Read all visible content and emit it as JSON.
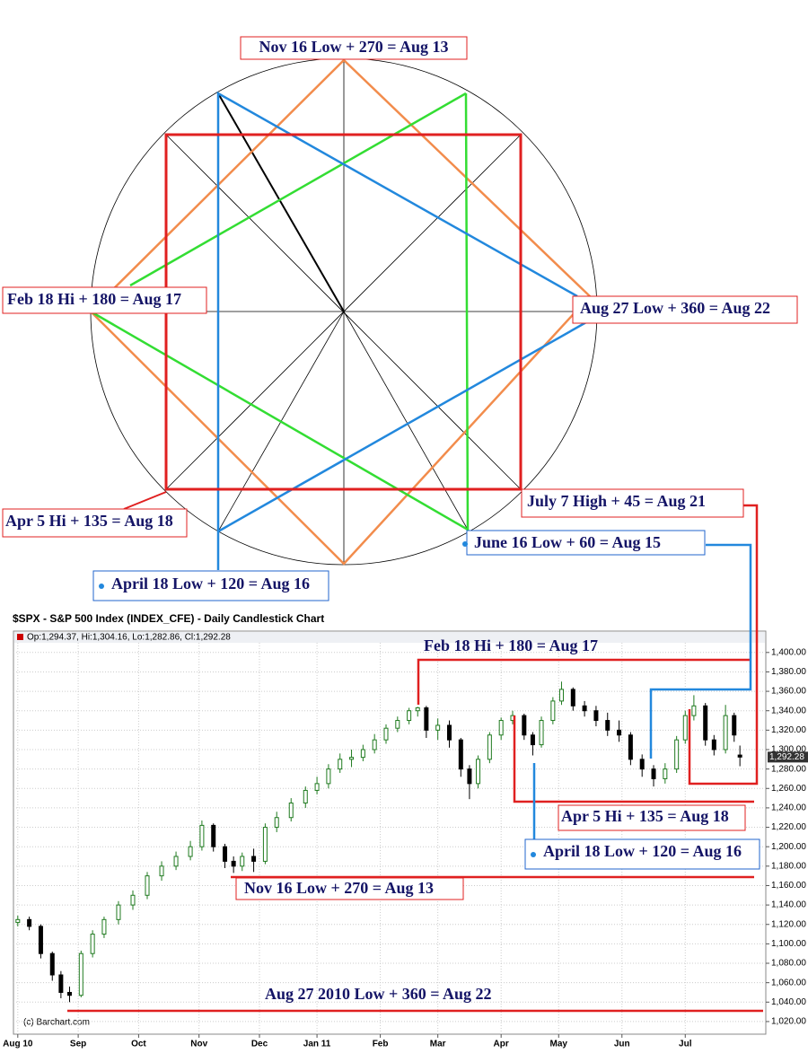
{
  "diagram": {
    "labels": [
      "Nov 16 Low + 270 = Aug 13",
      "Feb 18 Hi + 180 = Aug 17",
      "Aug 27 Low + 360 =  Aug 22",
      "Apr 5 Hi + 135 = Aug 18",
      "July 7 High  + 45 = Aug 21",
      "June 16 Low + 60 = Aug 15",
      "April 18 Low + 120 = Aug 16"
    ]
  },
  "chart_data": {
    "type": "candlestick",
    "title": "$SPX - S&P 500 Index (INDEX_CFE) - Daily Candlestick Chart",
    "info": "Op:1,294.37, Hi:1,304.16, Lo:1,282.86, Cl:1,292.28",
    "credit": "(c) Barchart.com",
    "annotations": [
      "Feb 18 Hi + 180 = Aug 17",
      "Apr 5 Hi + 135 = Aug 18",
      "April 18 Low + 120 = Aug 16",
      "Nov 16 Low + 270 = Aug 13",
      "Aug 27 2010 Low + 360 = Aug 22"
    ],
    "last_price": {
      "value": 1292.28,
      "label": "1,292.28"
    },
    "up_color": "#1f7a1f",
    "down_color": "#000000",
    "x": [
      0,
      4,
      8,
      12,
      15,
      18,
      22,
      26,
      30,
      35,
      40,
      45,
      50,
      55,
      60,
      64,
      68,
      72,
      75,
      78,
      82,
      86,
      90,
      95,
      100,
      104,
      108,
      112,
      116,
      120,
      124,
      128,
      132,
      136,
      139,
      142,
      146,
      150,
      154,
      157,
      160,
      164,
      168,
      172,
      176,
      179,
      182,
      186,
      189,
      193,
      197,
      201,
      205,
      209,
      213,
      217,
      221,
      225,
      229,
      232,
      235,
      239,
      242,
      246,
      249,
      251
    ],
    "open": [
      1122,
      1125,
      1118,
      1090,
      1068,
      1050,
      1047,
      1090,
      1110,
      1125,
      1140,
      1150,
      1170,
      1180,
      1190,
      1200,
      1222,
      1200,
      1185,
      1180,
      1190,
      1185,
      1220,
      1230,
      1245,
      1258,
      1265,
      1280,
      1290,
      1292,
      1300,
      1310,
      1322,
      1330,
      1340,
      1343,
      1320,
      1325,
      1310,
      1280,
      1265,
      1290,
      1315,
      1330,
      1335,
      1315,
      1305,
      1330,
      1350,
      1362,
      1345,
      1340,
      1330,
      1320,
      1315,
      1290,
      1280,
      1270,
      1280,
      1310,
      1335,
      1345,
      1310,
      1300,
      1335,
      1294.37
    ],
    "high": [
      1129,
      1128,
      1120,
      1092,
      1072,
      1056,
      1093,
      1114,
      1128,
      1144,
      1155,
      1174,
      1185,
      1195,
      1206,
      1227,
      1224,
      1203,
      1190,
      1194,
      1198,
      1224,
      1236,
      1250,
      1262,
      1272,
      1285,
      1296,
      1300,
      1305,
      1316,
      1326,
      1334,
      1343,
      1344,
      1345,
      1332,
      1330,
      1312,
      1284,
      1294,
      1318,
      1333,
      1340,
      1337,
      1318,
      1334,
      1354,
      1370,
      1364,
      1350,
      1345,
      1338,
      1330,
      1318,
      1295,
      1284,
      1286,
      1314,
      1340,
      1356,
      1348,
      1315,
      1346,
      1338,
      1304.16
    ],
    "low": [
      1118,
      1114,
      1085,
      1062,
      1044,
      1040,
      1045,
      1086,
      1106,
      1120,
      1135,
      1146,
      1165,
      1176,
      1186,
      1196,
      1195,
      1178,
      1173,
      1175,
      1174,
      1182,
      1215,
      1226,
      1240,
      1254,
      1260,
      1276,
      1282,
      1288,
      1296,
      1306,
      1318,
      1326,
      1334,
      1312,
      1310,
      1302,
      1272,
      1249,
      1260,
      1286,
      1310,
      1326,
      1310,
      1294,
      1302,
      1326,
      1346,
      1340,
      1334,
      1324,
      1314,
      1308,
      1284,
      1272,
      1262,
      1265,
      1276,
      1306,
      1330,
      1304,
      1294,
      1296,
      1308,
      1282.86
    ],
    "close": [
      1125,
      1118,
      1090,
      1068,
      1050,
      1047,
      1090,
      1110,
      1125,
      1140,
      1150,
      1170,
      1180,
      1190,
      1200,
      1222,
      1200,
      1185,
      1180,
      1190,
      1185,
      1220,
      1230,
      1245,
      1258,
      1265,
      1280,
      1290,
      1292,
      1300,
      1310,
      1322,
      1330,
      1340,
      1343,
      1320,
      1325,
      1310,
      1280,
      1265,
      1290,
      1315,
      1330,
      1335,
      1315,
      1305,
      1330,
      1350,
      1362,
      1345,
      1340,
      1330,
      1320,
      1315,
      1290,
      1280,
      1270,
      1280,
      1310,
      1335,
      1345,
      1310,
      1300,
      1335,
      1315,
      1292.28
    ],
    "xlim": [
      -1.5,
      260
    ],
    "xticks": [
      {
        "value": 0,
        "label": "Aug 10"
      },
      {
        "value": 21,
        "label": "Sep"
      },
      {
        "value": 42,
        "label": "Oct"
      },
      {
        "value": 63,
        "label": "Nov"
      },
      {
        "value": 84,
        "label": "Dec"
      },
      {
        "value": 104,
        "label": "Jan 11"
      },
      {
        "value": 126,
        "label": "Feb"
      },
      {
        "value": 146,
        "label": "Mar"
      },
      {
        "value": 168,
        "label": "Apr"
      },
      {
        "value": 188,
        "label": "May"
      },
      {
        "value": 210,
        "label": "Jun"
      },
      {
        "value": 232,
        "label": "Jul"
      }
    ],
    "ylim": [
      1007,
      1422
    ],
    "yticks": [
      {
        "value": 1020,
        "label": "1,020.00"
      },
      {
        "value": 1040,
        "label": "1,040.00"
      },
      {
        "value": 1060,
        "label": "1,060.00"
      },
      {
        "value": 1080,
        "label": "1,080.00"
      },
      {
        "value": 1100,
        "label": "1,100.00"
      },
      {
        "value": 1120,
        "label": "1,120.00"
      },
      {
        "value": 1140,
        "label": "1,140.00"
      },
      {
        "value": 1160,
        "label": "1,160.00"
      },
      {
        "value": 1180,
        "label": "1,180.00"
      },
      {
        "value": 1200,
        "label": "1,200.00"
      },
      {
        "value": 1220,
        "label": "1,220.00"
      },
      {
        "value": 1240,
        "label": "1,240.00"
      },
      {
        "value": 1260,
        "label": "1,260.00"
      },
      {
        "value": 1280,
        "label": "1,280.00"
      },
      {
        "value": 1300,
        "label": "1,300.00"
      },
      {
        "value": 1320,
        "label": "1,320.00"
      },
      {
        "value": 1340,
        "label": "1,340.00"
      },
      {
        "value": 1360,
        "label": "1,360.00"
      },
      {
        "value": 1380,
        "label": "1,380.00"
      },
      {
        "value": 1400,
        "label": "1,400.00"
      }
    ],
    "grid": true
  }
}
